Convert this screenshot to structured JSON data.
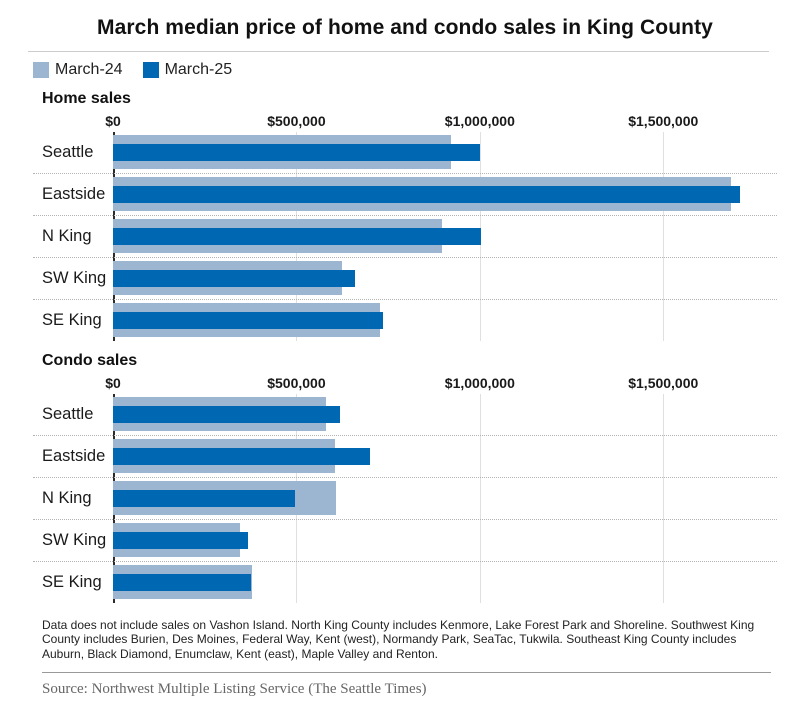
{
  "title": "March median price of home and condo sales in King County",
  "legend": [
    {
      "label": "March-24"
    },
    {
      "label": "March-25"
    }
  ],
  "colors": {
    "march24": "#9cb6d2",
    "march25": "#0068b2",
    "gridline": "#e0e0e0",
    "axis_line": "#2b2b2b",
    "separator": "#b3b3b3"
  },
  "axis": {
    "max_value": 1810000,
    "ticks": [
      {
        "label": "$0",
        "value": 0
      },
      {
        "label": "$500,000",
        "value": 500000
      },
      {
        "label": "$1,000,000",
        "value": 1000000
      },
      {
        "label": "$1,500,000",
        "value": 1500000
      }
    ]
  },
  "chart_data": [
    {
      "type": "bar",
      "orientation": "horizontal",
      "title": "Home sales",
      "categories": [
        "Seattle",
        "Eastside",
        "N King",
        "SW King",
        "SE King"
      ],
      "series": [
        {
          "name": "March-24",
          "values": [
            920000,
            1685000,
            896000,
            624000,
            728000
          ]
        },
        {
          "name": "March-25",
          "values": [
            1000000,
            1710000,
            1004000,
            659000,
            736000
          ]
        }
      ],
      "xlim": [
        0,
        1810000
      ],
      "grid": "vertical-solid, dotted row separators",
      "legend_position": "top"
    },
    {
      "type": "bar",
      "orientation": "horizontal",
      "title": "Condo sales",
      "categories": [
        "Seattle",
        "Eastside",
        "N King",
        "SW King",
        "SE King"
      ],
      "series": [
        {
          "name": "March-24",
          "values": [
            580000,
            604000,
            608000,
            345000,
            380000
          ]
        },
        {
          "name": "March-25",
          "values": [
            620000,
            700000,
            497000,
            369000,
            375000
          ]
        }
      ],
      "xlim": [
        0,
        1810000
      ],
      "grid": "vertical-solid, dotted row separators",
      "legend_position": "top"
    }
  ],
  "footnote": "Data does not include sales on Vashon Island. North King County includes Kenmore, Lake Forest Park and Shoreline. Southwest King County includes Burien, Des Moines, Federal Way, Kent (west), Normandy Park, SeaTac, Tukwila. Southeast King County includes Auburn, Black Diamond, Enumclaw, Kent (east), Maple Valley and Renton.",
  "source": "Source: Northwest Multiple Listing Service (The Seattle Times)"
}
